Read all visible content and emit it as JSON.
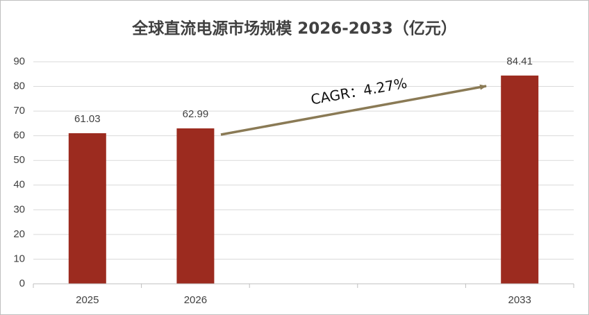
{
  "chart_data": {
    "type": "bar",
    "title": "全球直流电源市场规模 2026-2033（亿元）",
    "categories": [
      "2025",
      "2026",
      null,
      null,
      "2033"
    ],
    "values": [
      61.03,
      62.99,
      null,
      null,
      84.41
    ],
    "color": "#9c2b1f",
    "ylim": [
      0,
      90
    ],
    "yticks": [
      0,
      10,
      20,
      30,
      40,
      50,
      60,
      70,
      80,
      90
    ],
    "grid": true,
    "annotation": "CAGR：4.27%"
  }
}
